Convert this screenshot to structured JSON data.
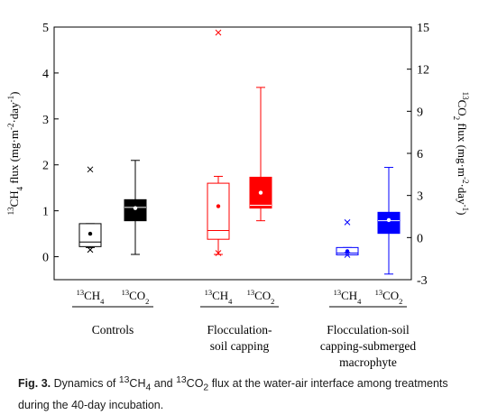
{
  "chart_data": {
    "type": "box",
    "left_axis": {
      "label_html": "<tspan baseline-shift='super' font-size='9'>13</tspan>CH<tspan baseline-shift='sub' font-size='9'>4</tspan> flux (mg·m<tspan baseline-shift='super' font-size='9'>-2</tspan>·day<tspan baseline-shift='super' font-size='9'>-1</tspan>)",
      "label_text": "13CH4 flux (mg·m-2·day-1)",
      "ylim": [
        -0.5,
        5
      ],
      "ticks": [
        0,
        1,
        2,
        3,
        4,
        5
      ]
    },
    "right_axis": {
      "label_html": "<tspan baseline-shift='super' font-size='9'>13</tspan>CO<tspan baseline-shift='sub' font-size='9'>2</tspan> flux (mg·m<tspan baseline-shift='super' font-size='9'>-2</tspan>·day<tspan baseline-shift='super' font-size='9'>-1</tspan>)",
      "label_text": "13CO2 flux (mg·m-2·day-1)",
      "ylim": [
        -3,
        15
      ],
      "ticks": [
        -3,
        0,
        3,
        6,
        9,
        12,
        15
      ]
    },
    "groups": [
      {
        "name": "Controls",
        "name_lines": [
          "Controls"
        ],
        "color": "#000000",
        "boxes": [
          {
            "series": "13CH4",
            "axis": "left",
            "filled": false,
            "whisker_low": 0.2,
            "q1": 0.22,
            "median": 0.32,
            "q3": 0.72,
            "whisker_high": 0.72,
            "mean": 0.5,
            "outliers_x": [
              1.9
            ],
            "outliers_plus": [
              0.15
            ]
          },
          {
            "series": "13CO2",
            "axis": "right",
            "filled": true,
            "whisker_low": -1.2,
            "q1": 1.2,
            "median": 2.15,
            "q3": 2.7,
            "whisker_high": 5.5,
            "mean": 2.1,
            "outliers_x": [],
            "outliers_plus": []
          }
        ]
      },
      {
        "name": "Flocculation-soil capping",
        "name_lines": [
          "Flocculation-",
          "soil capping"
        ],
        "color": "#ff0000",
        "boxes": [
          {
            "series": "13CH4",
            "axis": "left",
            "filled": false,
            "whisker_low": 0.05,
            "q1": 0.38,
            "median": 0.57,
            "q3": 1.6,
            "whisker_high": 1.75,
            "mean": 1.1,
            "outliers_x": [
              4.88
            ],
            "outliers_plus": [
              0.08
            ]
          },
          {
            "series": "13CO2",
            "axis": "right",
            "filled": true,
            "whisker_low": 1.2,
            "q1": 2.1,
            "median": 2.3,
            "q3": 4.3,
            "whisker_high": 10.7,
            "mean": 3.2,
            "outliers_x": [],
            "outliers_plus": []
          }
        ]
      },
      {
        "name": "Flocculation-soil capping-submerged macrophyte",
        "name_lines": [
          "Flocculation-soil",
          "capping-submerged",
          "macrophyte"
        ],
        "color": "#0000ff",
        "boxes": [
          {
            "series": "13CH4",
            "axis": "left",
            "filled": false,
            "whisker_low": 0.04,
            "q1": 0.04,
            "median": 0.08,
            "q3": 0.2,
            "whisker_high": 0.2,
            "mean": 0.12,
            "outliers_x": [
              0.75
            ],
            "outliers_plus": [
              0.04
            ]
          },
          {
            "series": "13CO2",
            "axis": "right",
            "filled": true,
            "whisker_low": -2.6,
            "q1": 0.3,
            "median": 1.2,
            "q3": 1.8,
            "whisker_high": 5.0,
            "mean": 1.25,
            "outliers_x": [],
            "outliers_plus": []
          }
        ]
      }
    ],
    "series_labels_html": {
      "13CH4": "<tspan baseline-shift='super' font-size='8.5'>13</tspan>CH<tspan baseline-shift='sub' font-size='8.5'>4</tspan>",
      "13CO2": "<tspan baseline-shift='super' font-size='8.5'>13</tspan>CO<tspan baseline-shift='sub' font-size='8.5'>2</tspan>"
    }
  },
  "caption": {
    "fig_label": "Fig. 3.",
    "text_html": " Dynamics of <sup>13</sup>CH<sub>4</sub> and <sup>13</sup>CO<sub>2</sub> flux at the water-air interface among treatments during the 40-day incubation.",
    "text": "Dynamics of 13CH4 and 13CO2 flux at the water-air interface among treatments during the 40-day incubation."
  }
}
